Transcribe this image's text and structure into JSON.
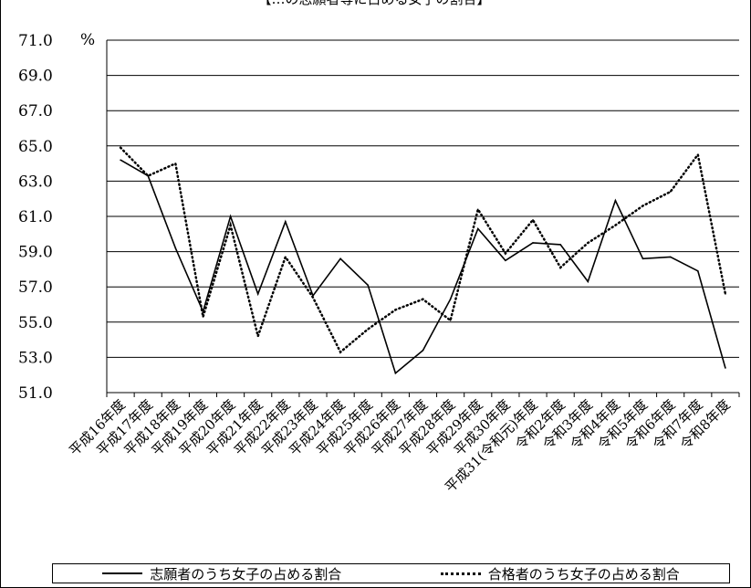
{
  "title_partial": "【…の志願者等に占める女子の割合】",
  "chart_data": {
    "type": "line",
    "y_unit": "%",
    "ylim": [
      51.0,
      71.0
    ],
    "y_ticks": [
      "71.0",
      "69.0",
      "67.0",
      "65.0",
      "63.0",
      "61.0",
      "59.0",
      "57.0",
      "55.0",
      "53.0",
      "51.0"
    ],
    "grid": true,
    "legend_position": "bottom",
    "categories": [
      "平成16年度",
      "平成17年度",
      "平成18年度",
      "平成19年度",
      "平成20年度",
      "平成21年度",
      "平成22年度",
      "平成23年度",
      "平成24年度",
      "平成25年度",
      "平成26年度",
      "平成27年度",
      "平成28年度",
      "平成29年度",
      "平成30年度",
      "平成31(令和元)年度",
      "令和2年度",
      "令和3年度",
      "令和4年度",
      "令和5年度",
      "令和6年度",
      "令和7年度",
      "令和8年度"
    ],
    "series": [
      {
        "name": "志願者のうち女子の占める割合",
        "style": "solid",
        "color": "#000000",
        "values": [
          64.2,
          63.3,
          59.2,
          55.6,
          61.0,
          56.6,
          60.7,
          56.5,
          58.6,
          57.1,
          52.1,
          53.4,
          56.3,
          60.3,
          58.5,
          59.5,
          59.4,
          57.3,
          61.9,
          58.6,
          58.7,
          57.9,
          52.4
        ]
      },
      {
        "name": "合格者のうち女子の占める割合",
        "style": "dotted",
        "color": "#000000",
        "values": [
          64.9,
          63.3,
          64.0,
          55.3,
          60.5,
          54.2,
          58.7,
          56.4,
          53.3,
          54.6,
          55.7,
          56.3,
          55.1,
          61.4,
          58.9,
          60.8,
          58.1,
          59.5,
          60.5,
          61.6,
          62.4,
          64.5,
          56.6
        ]
      }
    ]
  }
}
